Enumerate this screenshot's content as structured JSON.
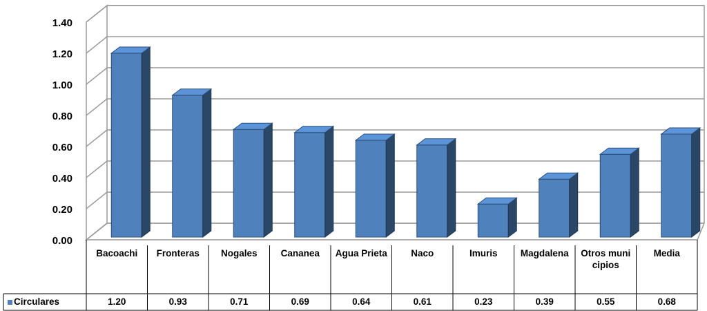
{
  "chart_data": {
    "type": "bar3d",
    "categories": [
      "Bacoachi",
      "Fronteras",
      "Nogales",
      "Cananea",
      "Agua Prieta",
      "Naco",
      "Imuris",
      "Magdalena",
      "Otros municipios",
      "Media"
    ],
    "series": [
      {
        "name": "Circulares",
        "color": "#4f81bd",
        "values": [
          1.2,
          0.93,
          0.71,
          0.69,
          0.64,
          0.61,
          0.23,
          0.39,
          0.55,
          0.68
        ],
        "value_labels": [
          "1.20",
          "0.93",
          "0.71",
          "0.69",
          "0.64",
          "0.61",
          "0.23",
          "0.39",
          "0.55",
          "0.68"
        ]
      }
    ],
    "ylim": [
      0,
      1.4
    ],
    "yticks": [
      {
        "value": 0,
        "label": "0.00"
      },
      {
        "value": 0.2,
        "label": "0.20"
      },
      {
        "value": 0.4,
        "label": "0.40"
      },
      {
        "value": 0.6,
        "label": "0.60"
      },
      {
        "value": 0.8,
        "label": "0.80"
      },
      {
        "value": 1,
        "label": "1.00"
      },
      {
        "value": 1.2,
        "label": "1.20"
      },
      {
        "value": 1.4,
        "label": "1.40"
      }
    ],
    "grid": true,
    "legend": "table"
  }
}
